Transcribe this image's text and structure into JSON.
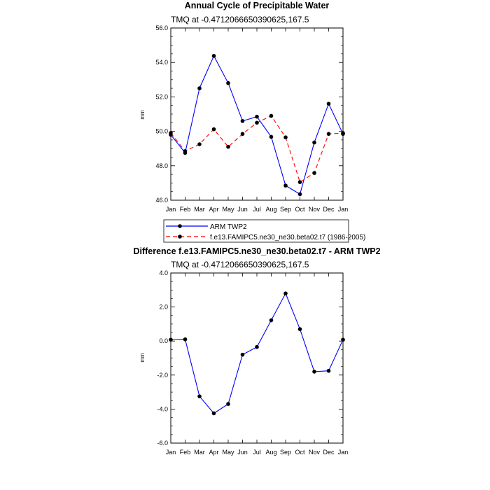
{
  "chart_data": [
    {
      "type": "line",
      "title": "Annual Cycle of Precipitable Water",
      "subtitle": "TMQ at -0.4712066650390625,167.5",
      "xlabel": "",
      "ylabel": "mm",
      "categories": [
        "Jan",
        "Feb",
        "Mar",
        "Apr",
        "May",
        "Jun",
        "Jul",
        "Aug",
        "Sep",
        "Oct",
        "Nov",
        "Dec",
        "Jan"
      ],
      "ylim": [
        46.0,
        56.0
      ],
      "yticks": [
        "46.0",
        "48.0",
        "50.0",
        "52.0",
        "54.0",
        "56.0"
      ],
      "grid": false,
      "legend_position": "bottom",
      "series": [
        {
          "name": "ARM TWP2",
          "color": "#0000ff",
          "dash": "solid",
          "values": [
            49.8,
            48.75,
            52.5,
            54.38,
            52.8,
            50.6,
            50.85,
            49.68,
            46.85,
            46.35,
            49.35,
            51.6,
            49.85
          ]
        },
        {
          "name": "f.e13.FAMIPC5.ne30_ne30.beta02.t7 (1986-2005)",
          "color": "#ff0000",
          "dash": "dashed",
          "values": [
            49.9,
            48.85,
            49.25,
            50.12,
            49.1,
            49.85,
            50.5,
            50.9,
            49.65,
            47.05,
            47.58,
            49.85,
            49.9
          ]
        }
      ]
    },
    {
      "type": "line",
      "title": "Difference f.e13.FAMIPC5.ne30_ne30.beta02.t7 - ARM TWP2",
      "subtitle": "TMQ at -0.4712066650390625,167.5",
      "xlabel": "",
      "ylabel": "mm",
      "categories": [
        "Jan",
        "Feb",
        "Mar",
        "Apr",
        "May",
        "Jun",
        "Jul",
        "Aug",
        "Sep",
        "Oct",
        "Nov",
        "Dec",
        "Jan"
      ],
      "ylim": [
        -6.0,
        4.0
      ],
      "yticks": [
        "-6.0",
        "-4.0",
        "-2.0",
        "0.0",
        "2.0",
        "4.0"
      ],
      "grid": false,
      "series": [
        {
          "name": "",
          "color": "#0000ff",
          "dash": "solid",
          "values": [
            0.08,
            0.1,
            -3.25,
            -4.25,
            -3.7,
            -0.8,
            -0.35,
            1.22,
            2.8,
            0.7,
            -1.8,
            -1.75,
            0.08
          ]
        }
      ]
    }
  ]
}
